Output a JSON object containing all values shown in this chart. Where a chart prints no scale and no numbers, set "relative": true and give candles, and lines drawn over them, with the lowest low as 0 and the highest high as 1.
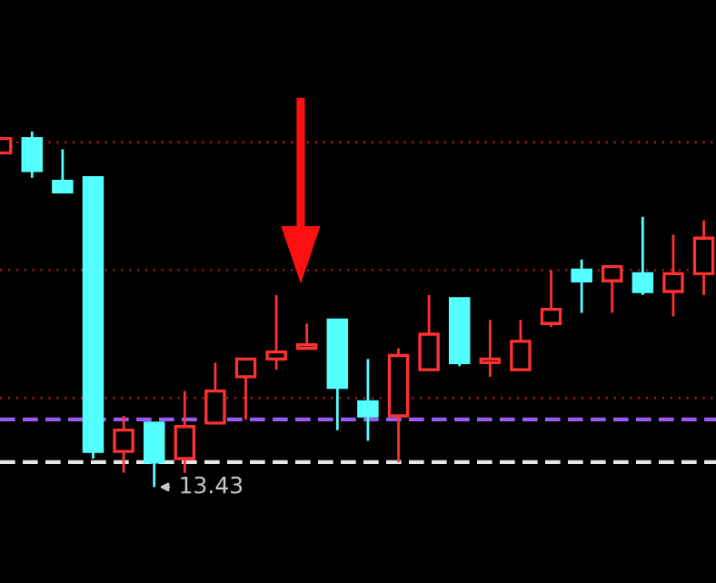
{
  "chart_data": {
    "type": "candlestick",
    "relative": true,
    "categories": [
      null,
      null,
      null,
      null,
      null,
      null,
      null,
      null,
      null,
      null,
      null,
      null,
      null,
      null,
      null,
      null,
      null,
      null,
      null,
      null,
      null,
      null,
      null,
      null
    ],
    "ohlc": [
      [
        0.94,
        0.98,
        0.94,
        0.98
      ],
      [
        0.98,
        1.0,
        0.87,
        0.89
      ],
      [
        0.86,
        0.95,
        0.83,
        0.83
      ],
      [
        0.87,
        0.87,
        0.08,
        0.1
      ],
      [
        0.1,
        0.2,
        0.04,
        0.16
      ],
      [
        0.18,
        0.18,
        0.0,
        0.07
      ],
      [
        0.08,
        0.27,
        0.04,
        0.17
      ],
      [
        0.18,
        0.35,
        0.18,
        0.27
      ],
      [
        0.31,
        0.36,
        0.19,
        0.36
      ],
      [
        0.36,
        0.54,
        0.33,
        0.38
      ],
      [
        0.39,
        0.46,
        0.39,
        0.4
      ],
      [
        0.47,
        0.47,
        0.16,
        0.28
      ],
      [
        0.24,
        0.36,
        0.13,
        0.2
      ],
      [
        0.2,
        0.39,
        0.07,
        0.37
      ],
      [
        0.33,
        0.54,
        0.33,
        0.43
      ],
      [
        0.53,
        0.53,
        0.34,
        0.35
      ],
      [
        0.35,
        0.47,
        0.31,
        0.36
      ],
      [
        0.33,
        0.47,
        0.33,
        0.41
      ],
      [
        0.46,
        0.61,
        0.45,
        0.5
      ],
      [
        0.61,
        0.64,
        0.49,
        0.58
      ],
      [
        0.58,
        0.62,
        0.49,
        0.62
      ],
      [
        0.6,
        0.76,
        0.54,
        0.55
      ],
      [
        0.55,
        0.71,
        0.48,
        0.6
      ],
      [
        0.6,
        0.75,
        0.54,
        0.7
      ]
    ],
    "colors": [
      "#ff3232",
      "#54ffff",
      "#54ffff",
      "#54ffff",
      "#ff3232",
      "#54ffff",
      "#ff3232",
      "#ff3232",
      "#ff3232",
      "#ff3232",
      "#ff3232",
      "#54ffff",
      "#54ffff",
      "#ff3232",
      "#ff3232",
      "#54ffff",
      "#ff3232",
      "#ff3232",
      "#ff3232",
      "#54ffff",
      "#ff3232",
      "#54ffff",
      "#ff3232",
      "#ff3232"
    ],
    "ref_lines": [
      {
        "axis": "y",
        "value": 0.97,
        "color": "#b22222",
        "line_style": "dotted"
      },
      {
        "axis": "y",
        "value": 0.61,
        "color": "#b22222",
        "line_style": "dotted"
      },
      {
        "axis": "y",
        "value": 0.25,
        "color": "#b22222",
        "line_style": "dotted"
      },
      {
        "axis": "y",
        "value": 0.19,
        "color": "#9a5bf0",
        "line_style": "dashed"
      },
      {
        "axis": "y",
        "value": 0.07,
        "color": "#e6e6e6",
        "line_style": "dashed"
      }
    ],
    "annotations": [
      "13.43"
    ]
  }
}
